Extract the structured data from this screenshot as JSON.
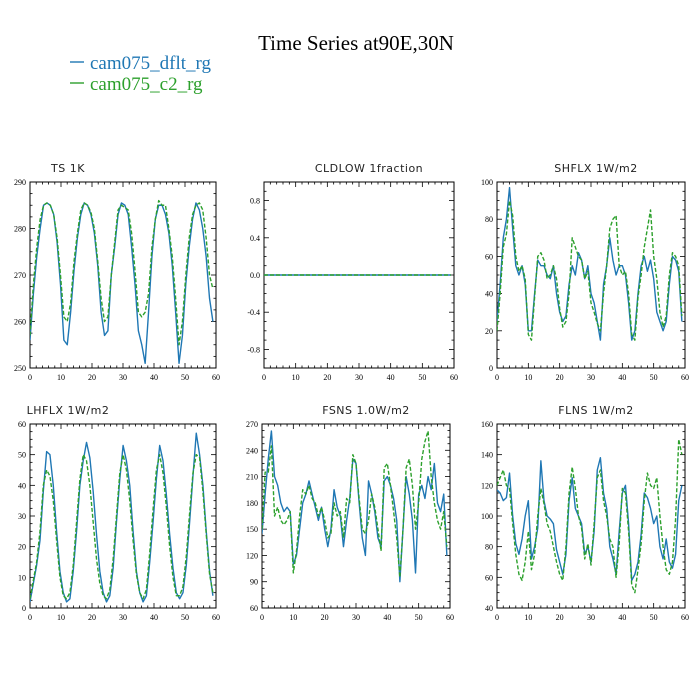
{
  "title": "Time Series at90E,30N",
  "colors": {
    "cam075_dflt_rg": "#1f77b4",
    "cam075_c2_rg": "#2ca02c"
  },
  "legend": [
    {
      "name": "cam075_dflt_rg",
      "color": "#1f77b4",
      "style": "solid"
    },
    {
      "name": "cam075_c2_rg",
      "color": "#2ca02c",
      "style": "dashed"
    }
  ],
  "chart_data": [
    {
      "type": "line",
      "title": "TS   1K",
      "xlim": [
        0,
        60
      ],
      "ylim": [
        250,
        290
      ],
      "xticks": [
        0,
        10,
        20,
        30,
        40,
        50,
        60
      ],
      "yticks": [
        250,
        260,
        270,
        280,
        290
      ],
      "series": [
        {
          "name": "cam075_dflt_rg",
          "values": [
            256,
            266,
            274,
            280,
            285,
            285.5,
            285,
            283,
            277,
            268,
            256,
            255,
            262,
            271,
            278,
            283,
            285.5,
            285,
            283,
            279,
            272,
            262,
            257,
            258,
            270,
            276,
            283,
            285.5,
            285,
            283,
            276,
            268,
            258,
            255,
            251,
            262,
            274,
            282,
            285,
            285,
            283,
            279,
            272,
            262,
            251,
            257,
            268,
            276,
            282,
            285.5,
            284,
            280,
            274,
            265,
            260
          ]
        },
        {
          "name": "cam075_c2_rg",
          "values": [
            257,
            268,
            276,
            282,
            285,
            285.5,
            285,
            283,
            278,
            270,
            261,
            260,
            264,
            273,
            279,
            284,
            285.5,
            285,
            283.5,
            280,
            273,
            265,
            260,
            261,
            270,
            277,
            284,
            285,
            284.5,
            284,
            279,
            271,
            262,
            261,
            262,
            266,
            276,
            282,
            286,
            285,
            285,
            280,
            274,
            265,
            255,
            260,
            270,
            278,
            283,
            285,
            285.5,
            284,
            278,
            270,
            267
          ]
        }
      ]
    },
    {
      "type": "line",
      "title": "CLDLOW   1fraction",
      "xlim": [
        0,
        60
      ],
      "ylim": [
        -1,
        1
      ],
      "xticks": [
        0,
        10,
        20,
        30,
        40,
        50,
        60
      ],
      "yticks": [
        -0.8,
        -0.4,
        0.0,
        0.4,
        0.8
      ],
      "ytick_labels": [
        "-0.8",
        "-0.4",
        "0.0",
        "0.4",
        "0.8"
      ],
      "series": [
        {
          "name": "cam075_dflt_rg",
          "values": [
            0,
            0,
            0,
            0,
            0,
            0,
            0,
            0,
            0,
            0,
            0,
            0,
            0,
            0,
            0,
            0,
            0,
            0,
            0,
            0,
            0,
            0,
            0,
            0,
            0,
            0,
            0,
            0,
            0,
            0,
            0,
            0,
            0,
            0,
            0,
            0,
            0,
            0,
            0,
            0,
            0,
            0,
            0,
            0,
            0,
            0,
            0,
            0,
            0,
            0,
            0,
            0,
            0,
            0,
            0,
            0,
            0,
            0,
            0,
            0
          ]
        },
        {
          "name": "cam075_c2_rg",
          "values": [
            0,
            0,
            0,
            0,
            0,
            0,
            0,
            0,
            0,
            0,
            0,
            0,
            0,
            0,
            0,
            0,
            0,
            0,
            0,
            0,
            0,
            0,
            0,
            0,
            0,
            0,
            0,
            0,
            0,
            0,
            0,
            0,
            0,
            0,
            0,
            0,
            0,
            0,
            0,
            0,
            0,
            0,
            0,
            0,
            0,
            0,
            0,
            0,
            0,
            0,
            0,
            0,
            0,
            0,
            0,
            0,
            0,
            0,
            0,
            0
          ]
        }
      ]
    },
    {
      "type": "line",
      "title": "SHFLX   1W/m2",
      "xlim": [
        0,
        60
      ],
      "ylim": [
        0,
        100
      ],
      "xticks": [
        0,
        10,
        20,
        30,
        40,
        50,
        60
      ],
      "yticks": [
        0,
        20,
        40,
        60,
        80,
        100
      ],
      "series": [
        {
          "name": "cam075_dflt_rg",
          "values": [
            25,
            45,
            70,
            80,
            97,
            75,
            55,
            50,
            55,
            45,
            20,
            20,
            40,
            58,
            55,
            55,
            50,
            48,
            55,
            40,
            30,
            25,
            28,
            45,
            55,
            50,
            62,
            58,
            48,
            55,
            40,
            35,
            25,
            15,
            45,
            55,
            70,
            58,
            50,
            55,
            55,
            50,
            35,
            15,
            20,
            40,
            55,
            60,
            52,
            58,
            48,
            30,
            25,
            20,
            25,
            45,
            60,
            58,
            52,
            25
          ]
        },
        {
          "name": "cam075_c2_rg",
          "values": [
            20,
            40,
            65,
            72,
            90,
            82,
            60,
            52,
            55,
            48,
            18,
            15,
            38,
            60,
            62,
            58,
            48,
            50,
            55,
            48,
            32,
            22,
            25,
            40,
            70,
            65,
            60,
            58,
            48,
            52,
            35,
            30,
            24,
            20,
            40,
            55,
            75,
            80,
            82,
            55,
            50,
            52,
            40,
            18,
            15,
            38,
            50,
            65,
            75,
            85,
            60,
            48,
            30,
            22,
            28,
            50,
            62,
            60,
            55,
            28
          ]
        }
      ]
    },
    {
      "type": "line",
      "title": "LHFLX   1W/m2",
      "xlim": [
        0,
        60
      ],
      "ylim": [
        0,
        60
      ],
      "xticks": [
        0,
        10,
        20,
        30,
        40,
        50,
        60
      ],
      "yticks": [
        0,
        10,
        20,
        30,
        40,
        50,
        60
      ],
      "series": [
        {
          "name": "cam075_dflt_rg",
          "values": [
            2,
            8,
            14,
            22,
            38,
            51,
            50,
            40,
            25,
            12,
            5,
            2,
            3,
            12,
            25,
            40,
            48,
            54,
            49,
            38,
            24,
            12,
            5,
            2,
            4,
            13,
            28,
            42,
            53,
            48,
            40,
            25,
            12,
            5,
            2,
            4,
            15,
            28,
            42,
            53,
            48,
            37,
            24,
            13,
            5,
            3,
            5,
            14,
            28,
            43,
            57,
            50,
            40,
            25,
            12,
            4
          ]
        },
        {
          "name": "cam075_c2_rg",
          "values": [
            3,
            9,
            15,
            25,
            40,
            45,
            43,
            35,
            22,
            10,
            4,
            3,
            5,
            14,
            28,
            42,
            50,
            48,
            40,
            28,
            16,
            8,
            4,
            3,
            6,
            16,
            30,
            44,
            50,
            45,
            35,
            22,
            11,
            5,
            3,
            6,
            18,
            32,
            45,
            50,
            44,
            33,
            20,
            10,
            4,
            4,
            7,
            17,
            31,
            44,
            50,
            49,
            38,
            24,
            11,
            5
          ]
        }
      ]
    },
    {
      "type": "line",
      "title": "FSNS   1.0W/m2",
      "xlim": [
        0,
        60
      ],
      "ylim": [
        60,
        270
      ],
      "xticks": [
        0,
        10,
        20,
        30,
        40,
        50,
        60
      ],
      "yticks": [
        60,
        90,
        120,
        150,
        180,
        210,
        240,
        270
      ],
      "series": [
        {
          "name": "cam075_dflt_rg",
          "values": [
            145,
            190,
            230,
            262,
            210,
            200,
            180,
            170,
            175,
            170,
            110,
            120,
            150,
            180,
            190,
            205,
            190,
            175,
            160,
            175,
            150,
            130,
            150,
            195,
            175,
            165,
            130,
            160,
            185,
            230,
            225,
            180,
            140,
            120,
            205,
            190,
            170,
            140,
            130,
            205,
            210,
            200,
            185,
            160,
            90,
            150,
            210,
            190,
            160,
            100,
            190,
            200,
            185,
            210,
            195,
            225,
            180,
            170,
            190,
            120
          ]
        },
        {
          "name": "cam075_c2_rg",
          "values": [
            150,
            215,
            215,
            245,
            165,
            175,
            160,
            155,
            160,
            170,
            100,
            125,
            165,
            195,
            190,
            200,
            185,
            180,
            165,
            175,
            160,
            140,
            145,
            180,
            165,
            170,
            140,
            185,
            180,
            235,
            225,
            185,
            150,
            145,
            160,
            190,
            175,
            150,
            125,
            220,
            225,
            200,
            170,
            140,
            95,
            150,
            220,
            230,
            200,
            150,
            180,
            230,
            250,
            262,
            210,
            180,
            160,
            150,
            170,
            130
          ]
        }
      ]
    },
    {
      "type": "line",
      "title": "FLNS   1W/m2",
      "xlim": [
        0,
        60
      ],
      "ylim": [
        40,
        160
      ],
      "xticks": [
        0,
        10,
        20,
        30,
        40,
        50,
        60
      ],
      "yticks": [
        40,
        60,
        80,
        100,
        120,
        140,
        160
      ],
      "series": [
        {
          "name": "cam075_dflt_rg",
          "values": [
            117,
            115,
            110,
            112,
            128,
            100,
            82,
            75,
            85,
            100,
            110,
            72,
            80,
            92,
            136,
            110,
            100,
            98,
            95,
            78,
            70,
            62,
            75,
            110,
            125,
            105,
            100,
            95,
            75,
            80,
            70,
            90,
            130,
            138,
            115,
            105,
            80,
            72,
            62,
            90,
            115,
            120,
            95,
            58,
            62,
            70,
            88,
            115,
            112,
            105,
            95,
            100,
            80,
            72,
            85,
            70,
            66,
            75,
            110,
            120
          ]
        },
        {
          "name": "cam075_c2_rg",
          "values": [
            120,
            125,
            130,
            120,
            118,
            95,
            75,
            62,
            58,
            70,
            90,
            65,
            75,
            100,
            118,
            108,
            95,
            90,
            80,
            70,
            62,
            58,
            80,
            115,
            132,
            118,
            100,
            92,
            72,
            82,
            68,
            95,
            125,
            130,
            110,
            100,
            85,
            80,
            60,
            82,
            118,
            115,
            90,
            55,
            50,
            65,
            82,
            110,
            128,
            120,
            118,
            125,
            100,
            80,
            65,
            62,
            70,
            98,
            150,
            140
          ]
        }
      ]
    }
  ]
}
